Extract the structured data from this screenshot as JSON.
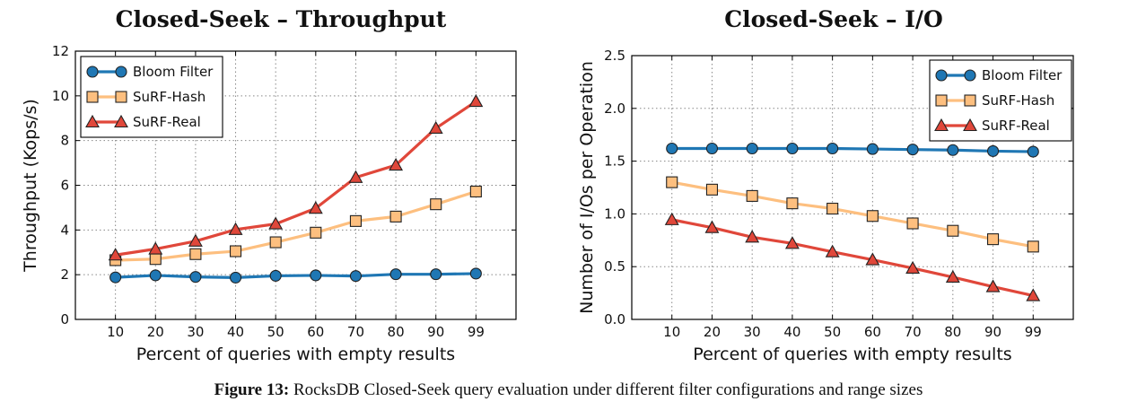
{
  "caption": {
    "label": "Figure 13:",
    "text": " RocksDB Closed-Seek query evaluation under different filter configurations and range sizes"
  },
  "chart_data": [
    {
      "type": "line",
      "title": "Closed-Seek – Throughput",
      "xlabel": "Percent of queries with empty results",
      "ylabel": "Throughput (Kops/s)",
      "categories": [
        "10",
        "20",
        "30",
        "40",
        "50",
        "60",
        "70",
        "80",
        "90",
        "99"
      ],
      "yticks": [
        0,
        2,
        4,
        6,
        8,
        10,
        12
      ],
      "ylim": [
        0,
        12
      ],
      "grid": true,
      "legend": "top-left",
      "series": [
        {
          "name": "Bloom Filter",
          "color": "#1f77b4",
          "marker": "circle",
          "values": [
            1.88,
            1.97,
            1.9,
            1.87,
            1.95,
            1.97,
            1.94,
            2.02,
            2.02,
            2.05
          ]
        },
        {
          "name": "SuRF-Hash",
          "color": "#fdbf7f",
          "marker": "square",
          "values": [
            2.65,
            2.7,
            2.92,
            3.05,
            3.45,
            3.88,
            4.4,
            4.6,
            5.15,
            5.72
          ]
        },
        {
          "name": "SuRF-Real",
          "color": "#e0473a",
          "marker": "triangle",
          "values": [
            2.88,
            3.15,
            3.5,
            4.02,
            4.27,
            4.97,
            6.35,
            6.9,
            8.55,
            9.75
          ]
        }
      ]
    },
    {
      "type": "line",
      "title": "Closed-Seek – I/O",
      "xlabel": "Percent of queries with empty results",
      "ylabel": "Number of I/Os per Operation",
      "categories": [
        "10",
        "20",
        "30",
        "40",
        "50",
        "60",
        "70",
        "80",
        "90",
        "99"
      ],
      "yticks": [
        "0.0",
        "0.5",
        "1.0",
        "1.5",
        "2.0",
        "2.5"
      ],
      "ylim": [
        0,
        2.5
      ],
      "grid": true,
      "legend": "top-right",
      "series": [
        {
          "name": "Bloom Filter",
          "color": "#1f77b4",
          "marker": "circle",
          "values": [
            1.62,
            1.62,
            1.62,
            1.62,
            1.62,
            1.615,
            1.61,
            1.605,
            1.595,
            1.59
          ]
        },
        {
          "name": "SuRF-Hash",
          "color": "#fdbf7f",
          "marker": "square",
          "values": [
            1.3,
            1.23,
            1.17,
            1.1,
            1.05,
            0.98,
            0.91,
            0.84,
            0.76,
            0.69
          ]
        },
        {
          "name": "SuRF-Real",
          "color": "#e0473a",
          "marker": "triangle",
          "values": [
            0.945,
            0.87,
            0.78,
            0.72,
            0.64,
            0.565,
            0.485,
            0.4,
            0.31,
            0.225
          ]
        }
      ]
    }
  ]
}
